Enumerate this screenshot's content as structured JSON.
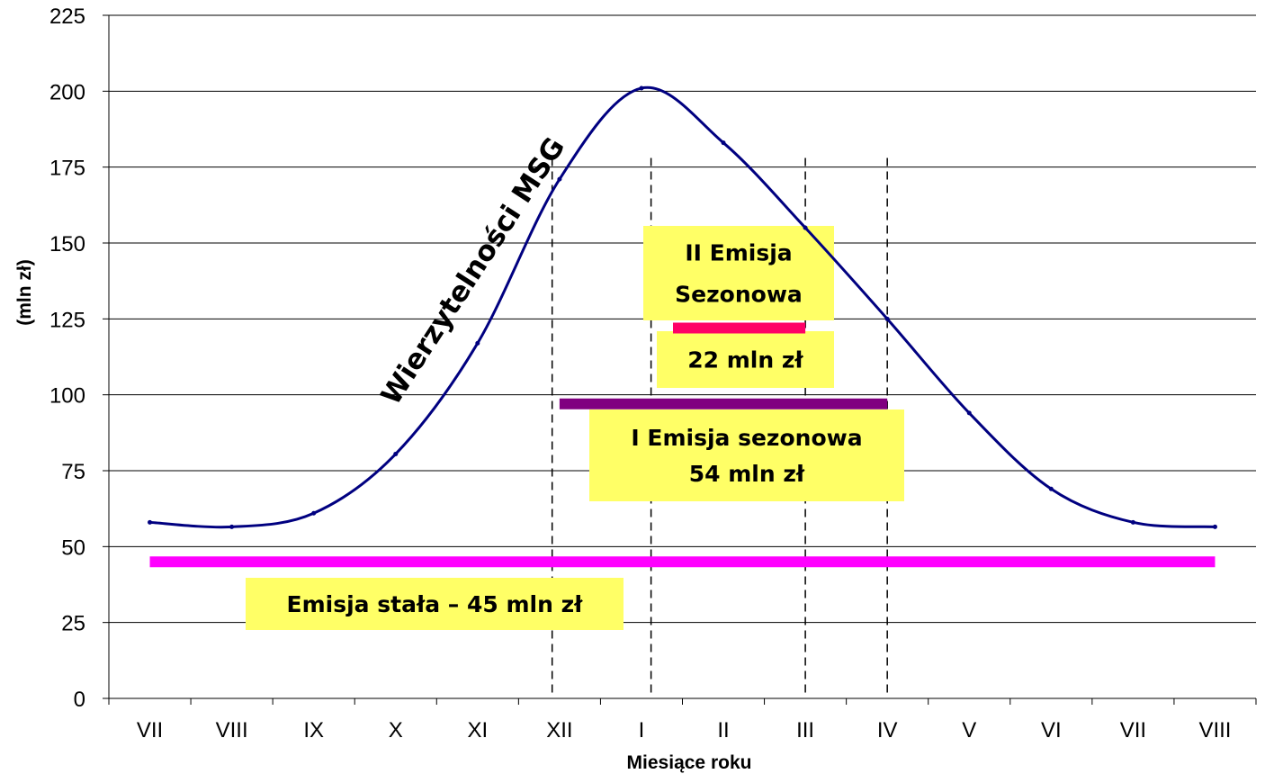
{
  "chart_data": {
    "type": "line",
    "title": "",
    "xlabel": "Miesiące roku",
    "ylabel": "(mln zł)",
    "ylim": [
      0,
      225
    ],
    "yticks": [
      0,
      25,
      50,
      75,
      100,
      125,
      150,
      175,
      200,
      225
    ],
    "categories": [
      "VII",
      "VIII",
      "IX",
      "X",
      "XI",
      "XII",
      "I",
      "II",
      "III",
      "IV",
      "V",
      "VI",
      "VII",
      "VIII"
    ],
    "grid": "horizontal",
    "series": [
      {
        "name": "Wierzytelności MSG",
        "color": "#000080",
        "values": [
          58,
          56.5,
          61,
          80.5,
          117,
          171,
          201,
          183,
          155,
          125,
          94,
          69,
          58,
          56.5
        ]
      }
    ],
    "emissions": [
      {
        "name": "Emisja stała",
        "value": 45,
        "from": "VII",
        "to": "VIII",
        "color": "#ff00ff",
        "label": "Emisja stała – 45 mln zł"
      },
      {
        "name": "I Emisja sezonowa",
        "value": 97,
        "from": "XII",
        "to": "IV",
        "color": "#800080",
        "label_lines": [
          "I Emisja sezonowa",
          "54 mln zł"
        ]
      },
      {
        "name": "II Emisja Sezonowa",
        "value": 122,
        "from": "I",
        "to": "III",
        "color": "#ff0066",
        "label_lines": [
          "II Emisja",
          "Sezonowa"
        ],
        "amount_label": "22 mln zł"
      }
    ],
    "dashed_markers": [
      "XII",
      "I",
      "III",
      "IV"
    ],
    "annotation_box_color": "#ffff66"
  }
}
